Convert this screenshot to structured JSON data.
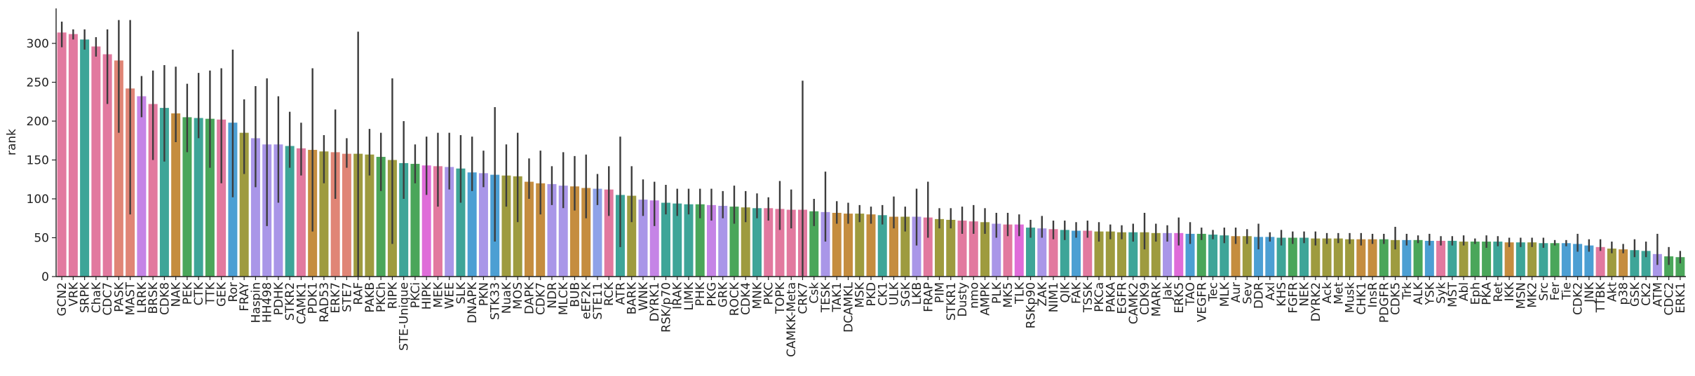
{
  "chart_data": {
    "type": "bar",
    "ylabel": "rank",
    "categories": [
      "GCN2",
      "VRK",
      "SRPK",
      "ChaK",
      "CDC7",
      "PASK",
      "MAST",
      "LRRK",
      "BRSK",
      "CDK8",
      "NAK",
      "PEK",
      "CTK",
      "TTK",
      "GEK",
      "Ror",
      "FRAY",
      "Haspin",
      "HH498",
      "PDHK",
      "STKR2",
      "CAMK1",
      "PDK1",
      "RAD53",
      "ERK7",
      "STE7",
      "RAF",
      "PAKB",
      "PKCh",
      "RIPK",
      "STE-Unique",
      "PKCi",
      "HIPK",
      "MEK",
      "WEE",
      "SLK",
      "DNAPK",
      "PKN",
      "STK33",
      "NuaK",
      "MOS",
      "DAPK",
      "CDK7",
      "NDR",
      "MLCK",
      "BUB",
      "eEF2K",
      "STE11",
      "RCK",
      "ATR",
      "BARK",
      "WNK",
      "DYRK1",
      "RSK/p70",
      "IRAK",
      "LIMK",
      "PHK",
      "PKG",
      "GRK",
      "ROCK",
      "CDK4",
      "MNK",
      "PKC",
      "TOPK",
      "CAMKK-Meta",
      "CRK7",
      "Csk",
      "TESK",
      "TAK1",
      "DCAMKL",
      "MSK",
      "PKD",
      "CK1",
      "ULK",
      "SGK",
      "LKB",
      "FRAP",
      "PIM",
      "STKR1",
      "Dusty",
      "nmo",
      "AMPK",
      "PLK",
      "MK5",
      "TLK",
      "RSKp90",
      "ZAK",
      "NIM1",
      "QIK",
      "FAK",
      "TSSK",
      "PKCa",
      "PAKA",
      "EGFR",
      "CAMK2",
      "CDK9",
      "MARK",
      "Jak",
      "ERK5",
      "TAO",
      "VEGFR",
      "Tec",
      "MLK",
      "Aur",
      "Sev",
      "DDR",
      "Axl",
      "KHS",
      "FGFR",
      "NEK",
      "DYRK2",
      "Ack",
      "Met",
      "Musk",
      "CHK1",
      "InsR",
      "PDGFR",
      "CDK5",
      "Trk",
      "ALK",
      "YSK",
      "Syk",
      "MST",
      "Abl",
      "Eph",
      "PKA",
      "Ret",
      "IKK",
      "MSN",
      "MK2",
      "Src",
      "Fer",
      "Tie",
      "CDK2",
      "JNK",
      "TTBK",
      "Akt",
      "p38",
      "GSK",
      "CK2",
      "ATM",
      "CDC2",
      "ERK1"
    ],
    "values": [
      314,
      312,
      305,
      296,
      286,
      278,
      242,
      232,
      222,
      217,
      210,
      205,
      204,
      203,
      202,
      198,
      185,
      178,
      170,
      170,
      168,
      165,
      163,
      161,
      160,
      158,
      158,
      157,
      154,
      150,
      146,
      145,
      143,
      142,
      141,
      139,
      134,
      133,
      131,
      130,
      129,
      122,
      120,
      119,
      117,
      116,
      114,
      113,
      112,
      105,
      104,
      99,
      98,
      95,
      94,
      93,
      93,
      92,
      91,
      90,
      89,
      88,
      88,
      87,
      86,
      86,
      84,
      83,
      82,
      81,
      81,
      80,
      79,
      77,
      77,
      77,
      76,
      74,
      73,
      72,
      71,
      70,
      68,
      67,
      67,
      63,
      62,
      61,
      60,
      59,
      59,
      58,
      58,
      57,
      57,
      57,
      56,
      56,
      56,
      55,
      55,
      54,
      53,
      52,
      52,
      51,
      51,
      50,
      50,
      50,
      49,
      49,
      49,
      48,
      48,
      48,
      48,
      47,
      47,
      47,
      46,
      46,
      46,
      45,
      45,
      45,
      45,
      44,
      44,
      44,
      43,
      43,
      43,
      42,
      40,
      38,
      36,
      35,
      34,
      33,
      29,
      26,
      25
    ],
    "ci_low": [
      295,
      305,
      292,
      283,
      222,
      185,
      80,
      205,
      150,
      148,
      173,
      160,
      178,
      140,
      120,
      102,
      132,
      115,
      65,
      95,
      140,
      130,
      58,
      120,
      100,
      140,
      0,
      130,
      110,
      42,
      100,
      120,
      105,
      90,
      112,
      95,
      110,
      115,
      45,
      90,
      70,
      100,
      80,
      92,
      88,
      85,
      75,
      92,
      78,
      38,
      70,
      78,
      65,
      80,
      78,
      80,
      75,
      72,
      75,
      68,
      70,
      75,
      72,
      60,
      62,
      0,
      65,
      45,
      68,
      68,
      70,
      68,
      67,
      62,
      58,
      40,
      50,
      62,
      62,
      55,
      55,
      55,
      50,
      52,
      52,
      50,
      50,
      48,
      47,
      50,
      50,
      45,
      48,
      48,
      45,
      35,
      45,
      45,
      40,
      42,
      47,
      48,
      43,
      42,
      42,
      35,
      45,
      40,
      42,
      43,
      40,
      42,
      43,
      42,
      40,
      42,
      42,
      35,
      40,
      43,
      40,
      40,
      40,
      40,
      42,
      37,
      39,
      38,
      38,
      38,
      37,
      40,
      39,
      32,
      32,
      33,
      30,
      30,
      25,
      25,
      15,
      15,
      17
    ],
    "ci_high": [
      328,
      318,
      318,
      308,
      318,
      330,
      330,
      258,
      265,
      272,
      270,
      248,
      262,
      265,
      268,
      292,
      228,
      245,
      255,
      232,
      212,
      198,
      268,
      182,
      215,
      178,
      315,
      190,
      185,
      255,
      200,
      170,
      180,
      185,
      185,
      182,
      180,
      162,
      218,
      170,
      185,
      152,
      162,
      142,
      160,
      155,
      157,
      132,
      142,
      180,
      142,
      125,
      122,
      118,
      113,
      113,
      113,
      113,
      110,
      117,
      110,
      107,
      102,
      123,
      112,
      252,
      100,
      135,
      97,
      95,
      92,
      90,
      92,
      103,
      90,
      113,
      122,
      88,
      88,
      90,
      92,
      88,
      82,
      82,
      80,
      73,
      78,
      72,
      72,
      70,
      72,
      70,
      67,
      66,
      68,
      82,
      68,
      66,
      76,
      70,
      63,
      60,
      63,
      63,
      61,
      68,
      57,
      60,
      58,
      58,
      58,
      56,
      56,
      56,
      56,
      55,
      55,
      64,
      55,
      53,
      55,
      52,
      52,
      53,
      49,
      53,
      52,
      50,
      50,
      50,
      50,
      47,
      47,
      55,
      48,
      48,
      45,
      42,
      48,
      45,
      55,
      38,
      33
    ],
    "colors": [
      "#e2799f",
      "#e2799f",
      "#3ea598",
      "#e2799f",
      "#e2799f",
      "#e08576",
      "#e08576",
      "#c584e6",
      "#e2799f",
      "#3ea598",
      "#c58d3f",
      "#4aa65a",
      "#3ea598",
      "#4aa65a",
      "#e2799f",
      "#4c9fd3",
      "#9e9b3f",
      "#a996e8",
      "#a996e8",
      "#a996e8",
      "#3ea598",
      "#e2799f",
      "#c58d3f",
      "#9e9b3f",
      "#e08576",
      "#e08576",
      "#9e9b3f",
      "#9e9b3f",
      "#4aa65a",
      "#9e9b3f",
      "#3ea598",
      "#4aa65a",
      "#df6cd9",
      "#e2799f",
      "#a996e8",
      "#3ea598",
      "#4c9fd3",
      "#a996e8",
      "#4c9fd3",
      "#9e9b3f",
      "#9e9b3f",
      "#c58d3f",
      "#c58d3f",
      "#a996e8",
      "#a996e8",
      "#c58d3f",
      "#c58d3f",
      "#8fa2e8",
      "#e2799f",
      "#3ea598",
      "#9e9b3f",
      "#a996e8",
      "#c584e6",
      "#3ea598",
      "#3ea598",
      "#3ea598",
      "#4aa65a",
      "#c584e6",
      "#a996e8",
      "#4aa65a",
      "#9e9b3f",
      "#3ea598",
      "#e2799f",
      "#e2799f",
      "#e2799f",
      "#e2799f",
      "#4aa65a",
      "#a996e8",
      "#c58d3f",
      "#c58d3f",
      "#9e9b3f",
      "#c58d3f",
      "#3ea598",
      "#c58d3f",
      "#9e9b3f",
      "#a996e8",
      "#e2799f",
      "#9e9b3f",
      "#9e9b3f",
      "#e2799f",
      "#e2799f",
      "#9e9b3f",
      "#a996e8",
      "#e2799f",
      "#df6cd9",
      "#3ea598",
      "#a996e8",
      "#e2799f",
      "#3ea598",
      "#4c9fd3",
      "#e2799f",
      "#9e9b3f",
      "#9e9b3f",
      "#9e9b3f",
      "#3ea598",
      "#9e9b3f",
      "#9e9b3f",
      "#a996e8",
      "#df6cd9",
      "#4c9fd3",
      "#4aa65a",
      "#3ea598",
      "#3ea598",
      "#c58d3f",
      "#9e9b3f",
      "#4c9fd3",
      "#4c9fd3",
      "#3ea598",
      "#4aa65a",
      "#3ea598",
      "#9e9b3f",
      "#9e9b3f",
      "#9e9b3f",
      "#9e9b3f",
      "#c58d3f",
      "#c58d3f",
      "#4aa65a",
      "#9e9b3f",
      "#4c9fd3",
      "#4aa65a",
      "#4c9fd3",
      "#e2799f",
      "#3ea598",
      "#9e9b3f",
      "#4aa65a",
      "#4aa65a",
      "#3ea598",
      "#c58d3f",
      "#3ea598",
      "#9e9b3f",
      "#3ea598",
      "#4aa65a",
      "#4c9fd3",
      "#4c9fd3",
      "#4c9fd3",
      "#e2799f",
      "#9e9b3f",
      "#c58d3f",
      "#3ea598",
      "#3ea598",
      "#a996e8",
      "#4aa65a",
      "#4aa65a"
    ],
    "ylim": [
      0,
      345
    ],
    "yticks": [
      0,
      50,
      100,
      150,
      200,
      250,
      300
    ]
  }
}
